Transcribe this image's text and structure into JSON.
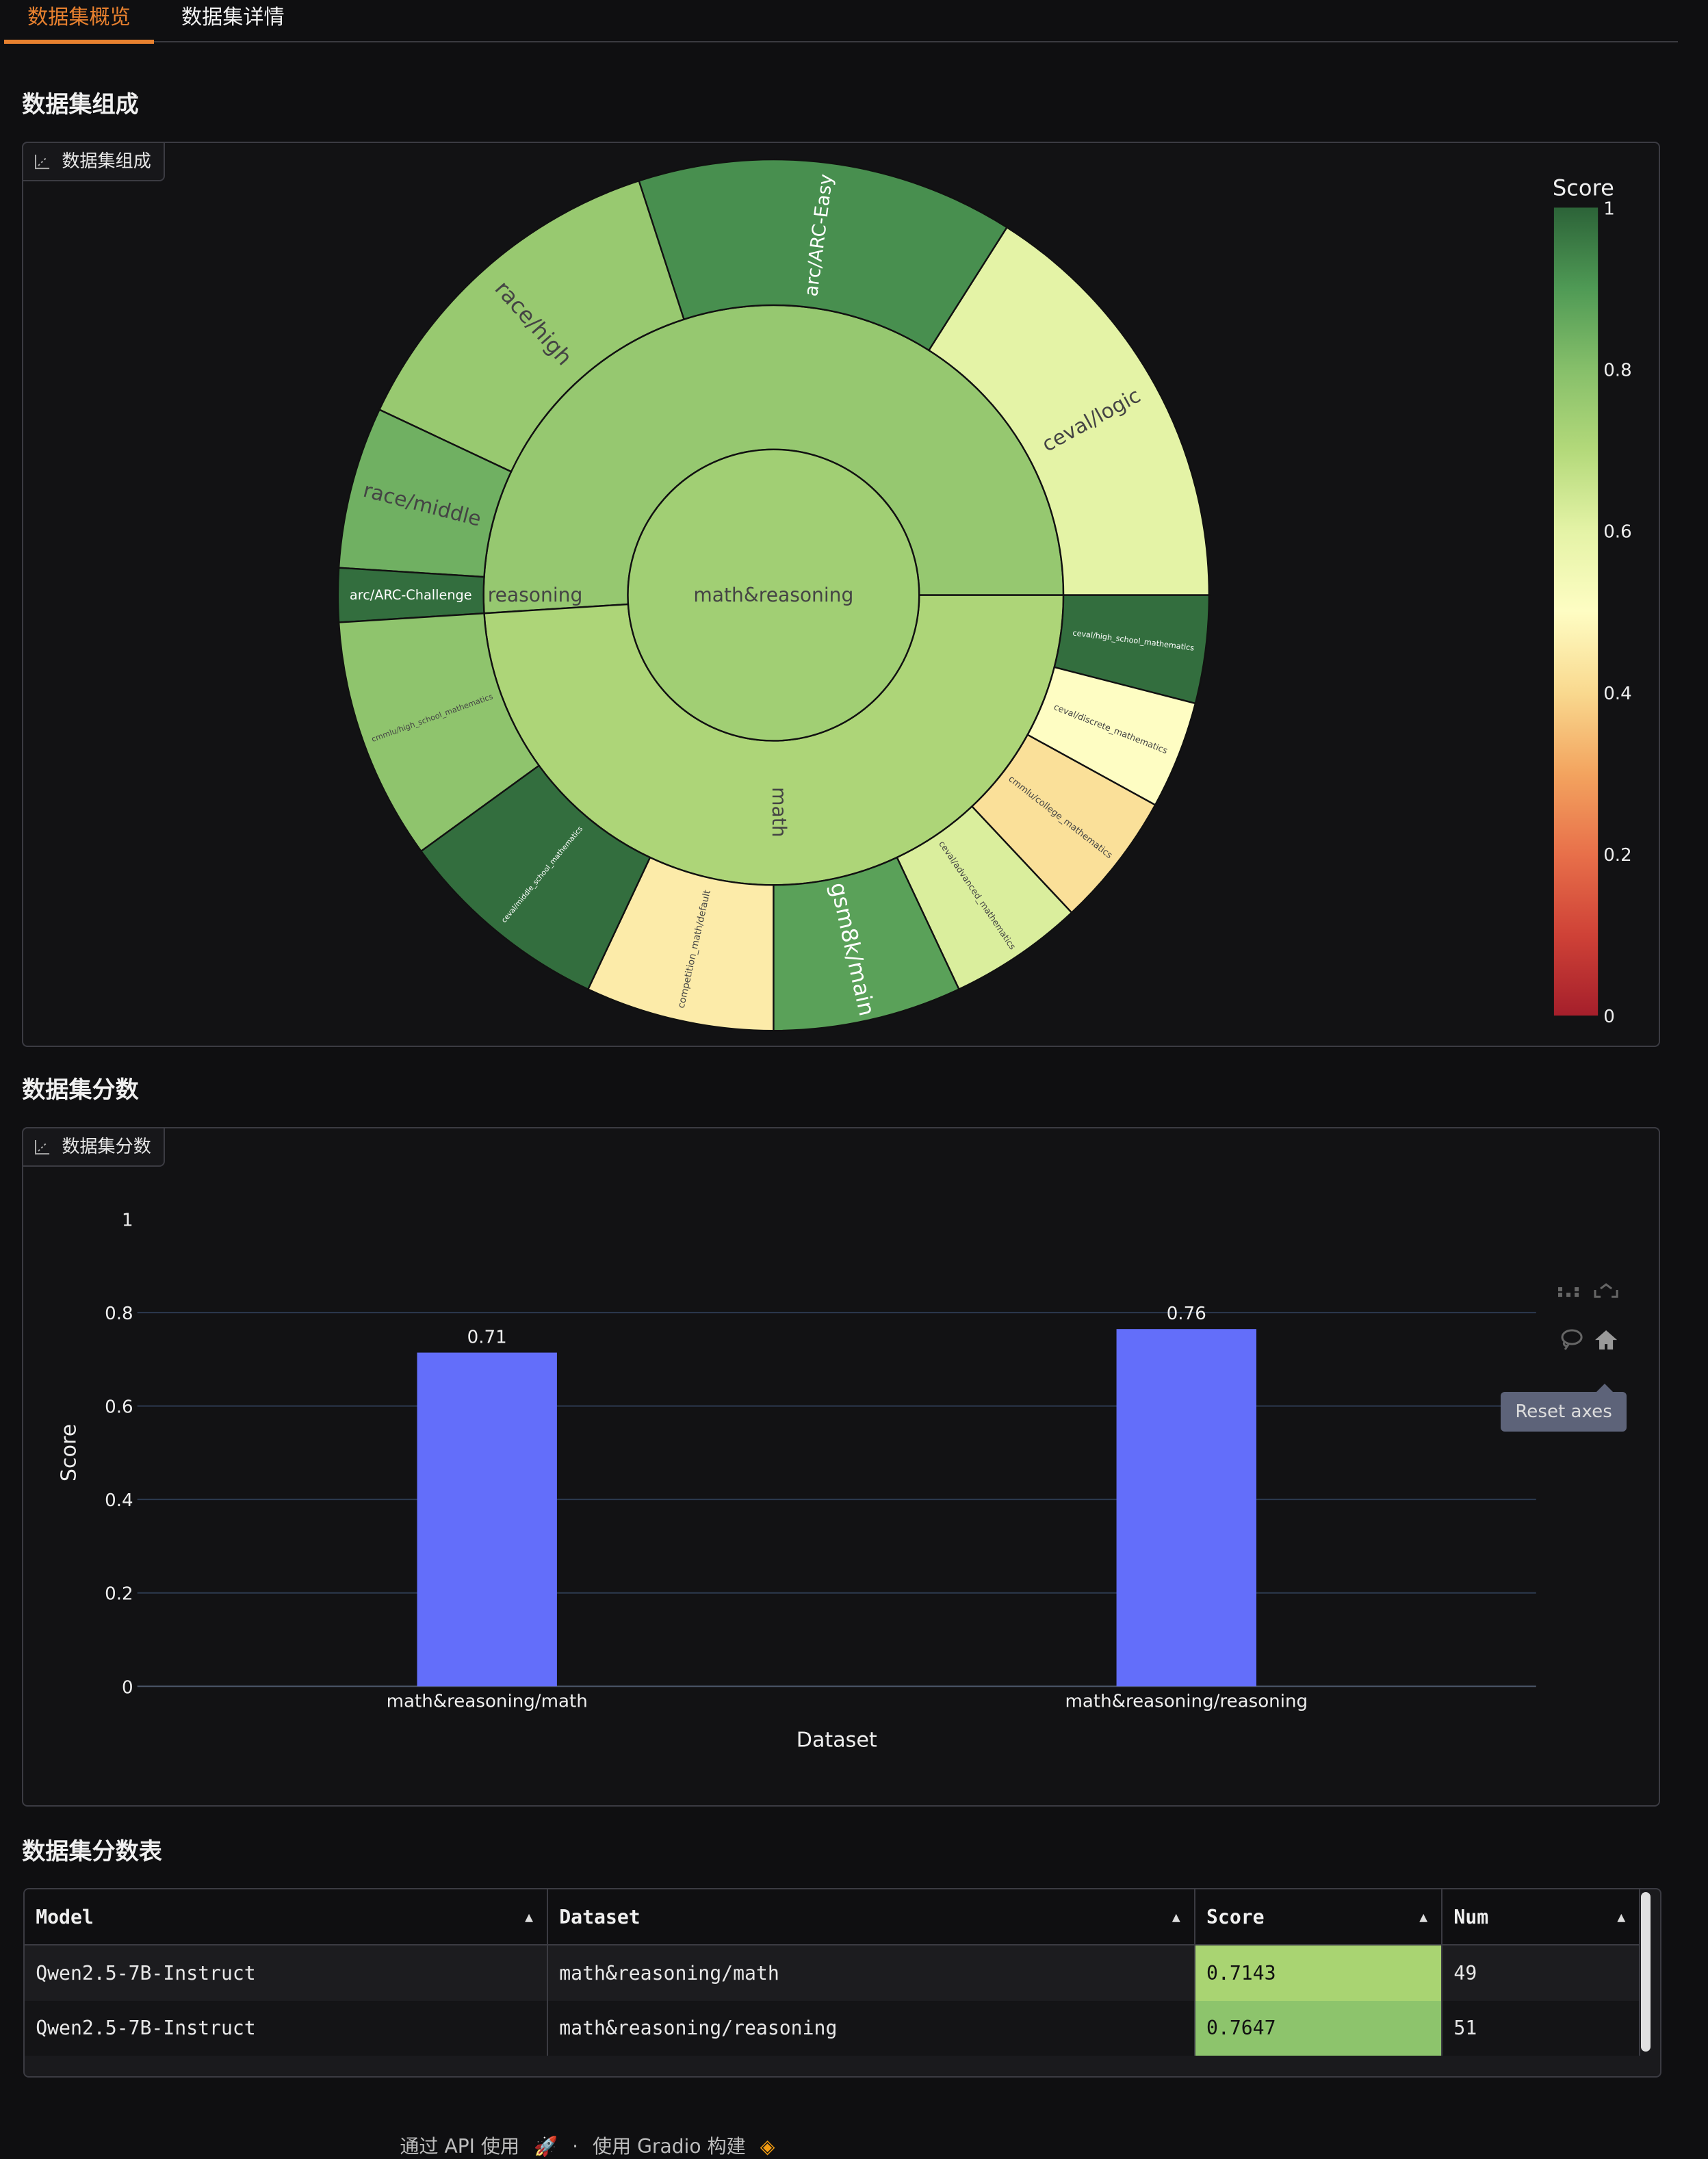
{
  "tabs": [
    {
      "label": "数据集概览",
      "active": true
    },
    {
      "label": "数据集详情",
      "active": false
    }
  ],
  "accent_color": "#e8812f",
  "composition": {
    "heading": "数据集组成",
    "panel_label": "数据集组成",
    "panel_icon": "chart-icon",
    "chart_data": {
      "type": "sunburst",
      "root": {
        "label": "math&reasoning",
        "score": 0.7395
      },
      "groups": [
        {
          "label": "reasoning",
          "score": 0.7647,
          "children": [
            {
              "label": "ceval/logic",
              "value": 16,
              "score": 0.6
            },
            {
              "label": "arc/ARC-Easy",
              "value": 14,
              "score": 0.92
            },
            {
              "label": "race/high",
              "value": 13,
              "score": 0.76
            },
            {
              "label": "race/middle",
              "value": 6,
              "score": 0.84
            },
            {
              "label": "arc/ARC-Challenge",
              "value": 2,
              "score": 0.98
            }
          ]
        },
        {
          "label": "math",
          "score": 0.7143,
          "children": [
            {
              "label": "ceval/high_school_mathematics",
              "value": 4,
              "score": 0.98
            },
            {
              "label": "ceval/discrete_mathematics",
              "value": 4,
              "score": 0.5
            },
            {
              "label": "cmmlu/college_mathematics",
              "value": 5,
              "score": 0.42
            },
            {
              "label": "ceval/advanced_mathematics",
              "value": 5,
              "score": 0.62
            },
            {
              "label": "gsm8k/main",
              "value": 7,
              "score": 0.88
            },
            {
              "label": "competition_math/default",
              "value": 7,
              "score": 0.45
            },
            {
              "label": "ceval/middle_school_mathematics",
              "value": 8,
              "score": 0.98
            },
            {
              "label": "cmmlu/high_school_mathematics",
              "value": 9,
              "score": 0.78
            }
          ]
        }
      ],
      "colorbar": {
        "title": "Score",
        "range": [
          0,
          1
        ],
        "ticks": [
          "0",
          "0.2",
          "0.4",
          "0.6",
          "0.8",
          "1"
        ],
        "colorscale": "RdYlGn"
      }
    }
  },
  "scores": {
    "heading": "数据集分数",
    "panel_label": "数据集分数",
    "panel_icon": "chart-icon",
    "chart_data": {
      "type": "bar",
      "categories": [
        "math&reasoning/math",
        "math&reasoning/reasoning"
      ],
      "values": [
        0.7143,
        0.7647
      ],
      "data_labels": [
        "0.71",
        "0.76"
      ],
      "xlabel": "Dataset",
      "ylabel": "Score",
      "ylim": [
        0,
        1
      ],
      "yticks": [
        "0",
        "0.2",
        "0.4",
        "0.6",
        "0.8",
        "1"
      ],
      "bar_color": "#636efa",
      "grid": true
    },
    "modebar": {
      "icons": [
        "autoscale-icon",
        "zoom-out-icon",
        "lasso-icon",
        "home-icon"
      ],
      "tooltip": "Reset axes"
    }
  },
  "score_table": {
    "heading": "数据集分数表",
    "columns": [
      "Model",
      "Dataset",
      "Score",
      "Num"
    ],
    "rows": [
      [
        "Qwen2.5-7B-Instruct",
        "math&reasoning/math",
        "0.7143",
        "49"
      ],
      [
        "Qwen2.5-7B-Instruct",
        "math&reasoning/reasoning",
        "0.7647",
        "51"
      ]
    ],
    "score_colors": [
      "#a9d472",
      "#8dc46c"
    ]
  },
  "footer": {
    "api": "通过 API 使用",
    "separator": "·",
    "built": "使用 Gradio 构建"
  }
}
